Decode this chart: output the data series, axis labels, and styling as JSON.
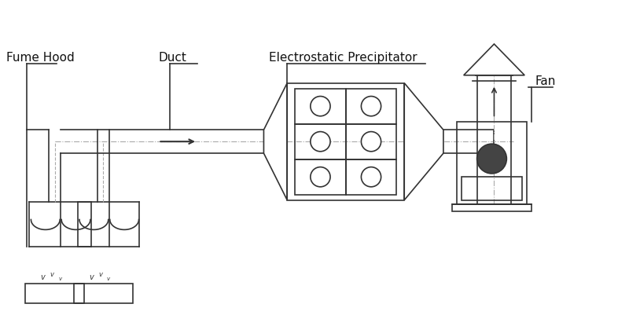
{
  "bg_color": "#ffffff",
  "line_color": "#333333",
  "labels": {
    "fume_hood": "Fume Hood",
    "duct": "Duct",
    "esp": "Electrostatic Precipitator",
    "fan": "Fan"
  },
  "label_fontsize": 11
}
